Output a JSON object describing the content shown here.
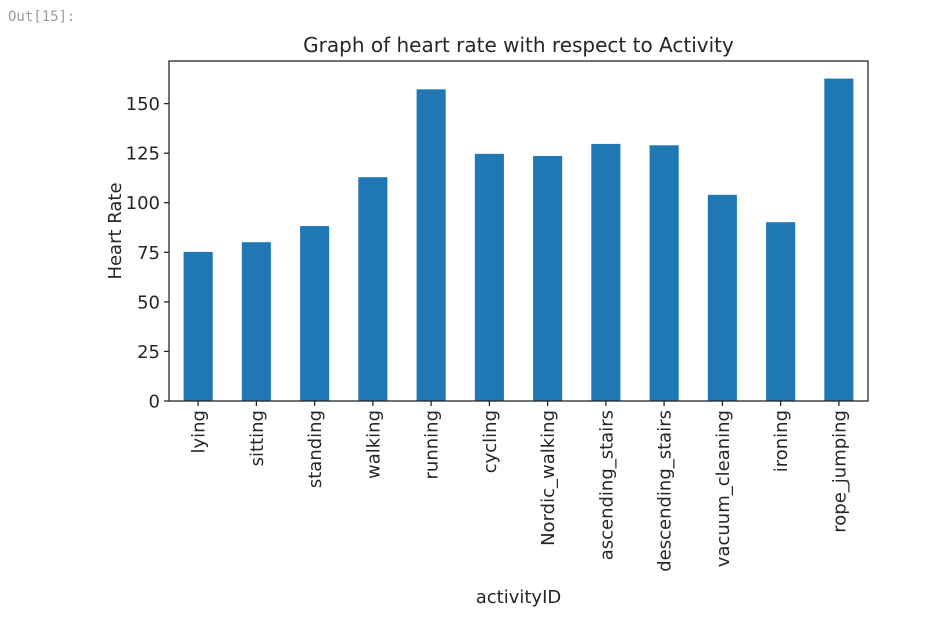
{
  "jupyter": {
    "out_prompt": "Out[15]:"
  },
  "chart_data": {
    "type": "bar",
    "title": "Graph of heart rate with respect to Activity",
    "xlabel": "activityID",
    "ylabel": "Heart Rate",
    "categories": [
      "lying",
      "sitting",
      "standing",
      "walking",
      "running",
      "cycling",
      "Nordic_walking",
      "ascending_stairs",
      "descending_stairs",
      "vacuum_cleaning",
      "ironing",
      "rope_jumping"
    ],
    "values": [
      75.2,
      80.1,
      88.2,
      112.9,
      157.2,
      124.7,
      123.6,
      129.7,
      129.0,
      104.0,
      90.2,
      162.6
    ],
    "yticks": [
      0,
      25,
      50,
      75,
      100,
      125,
      150
    ],
    "ylim": [
      0,
      171.5
    ],
    "bar_width_fraction": 0.5,
    "grid": false,
    "legend": null,
    "bar_color": "#1f77b4",
    "axis_color": "#262626",
    "text_color": "#262626"
  }
}
